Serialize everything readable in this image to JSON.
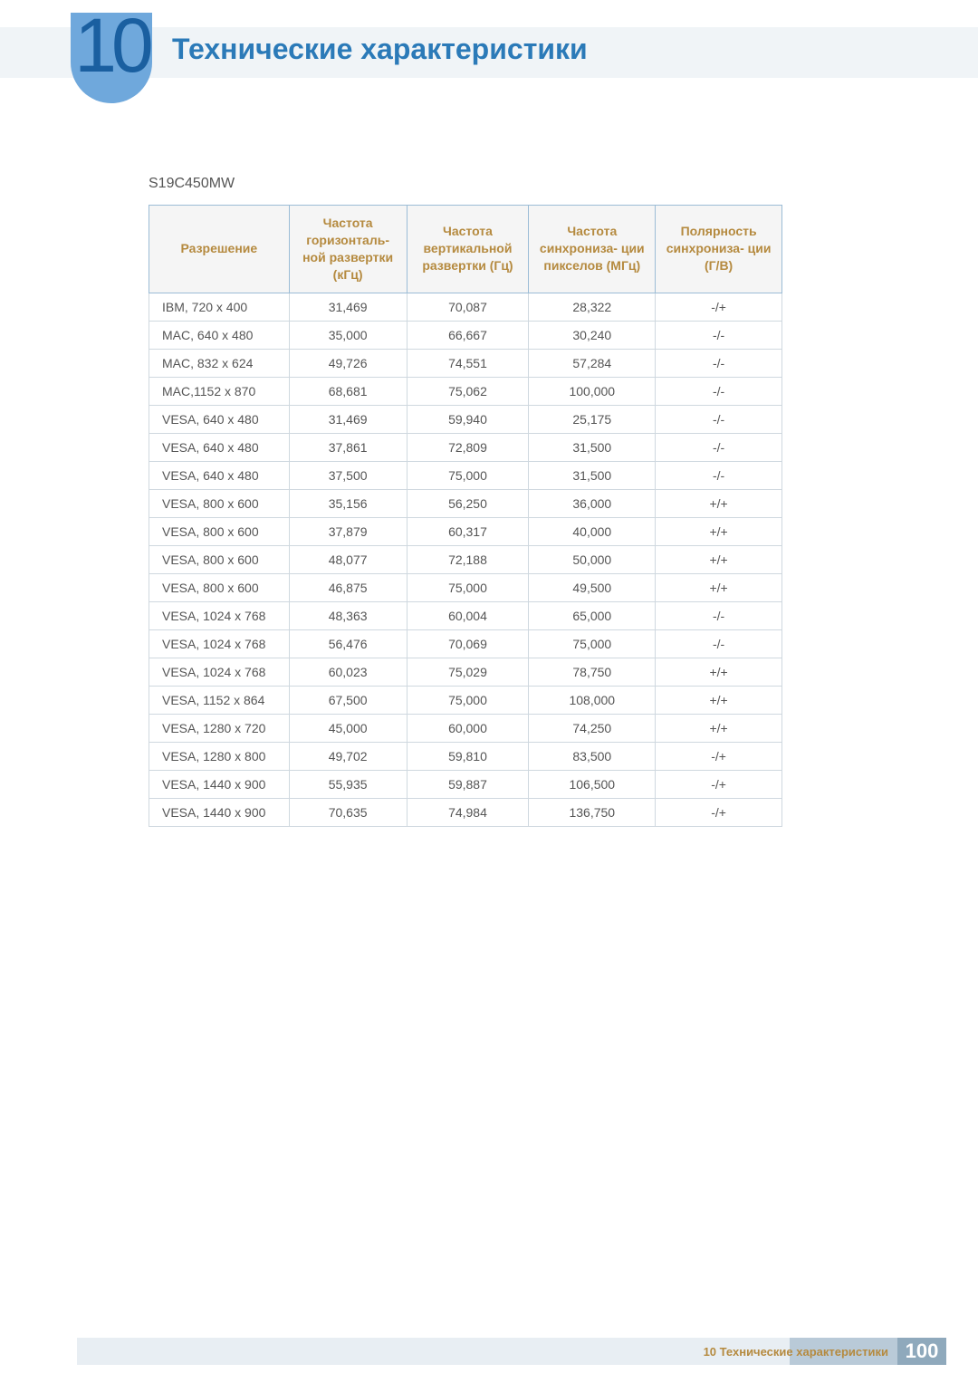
{
  "header": {
    "chapter_number": "10",
    "title": "Технические характеристики",
    "badge_color": "#6fa8dc",
    "number_color": "#1a5fa0",
    "title_color": "#2b7ab8",
    "bar_background": "#f0f4f7"
  },
  "model": "S19C450MW",
  "table": {
    "border_color": "#9bbcd6",
    "cell_border_color": "#cfd8df",
    "header_bg": "#f5f5f5",
    "header_text_color": "#b58a3f",
    "body_text_color": "#555555",
    "columns": [
      "Разрешение",
      "Частота горизонталь- ной развертки (кГц)",
      "Частота вертикальной развертки (Гц)",
      "Частота синхрониза- ции пикселов (МГц)",
      "Полярность синхрониза- ции (Г/В)"
    ],
    "rows": [
      [
        "IBM, 720 x 400",
        "31,469",
        "70,087",
        "28,322",
        "-/+"
      ],
      [
        "MAC, 640 x 480",
        "35,000",
        "66,667",
        "30,240",
        "-/-"
      ],
      [
        "MAC, 832 x 624",
        "49,726",
        "74,551",
        "57,284",
        "-/-"
      ],
      [
        "MAC,1152 x 870",
        "68,681",
        "75,062",
        "100,000",
        "-/-"
      ],
      [
        "VESA, 640 x 480",
        "31,469",
        "59,940",
        "25,175",
        "-/-"
      ],
      [
        "VESA, 640 x 480",
        "37,861",
        "72,809",
        "31,500",
        "-/-"
      ],
      [
        "VESA, 640 x 480",
        "37,500",
        "75,000",
        "31,500",
        "-/-"
      ],
      [
        "VESA, 800 x 600",
        "35,156",
        "56,250",
        "36,000",
        "+/+"
      ],
      [
        "VESA, 800 x 600",
        "37,879",
        "60,317",
        "40,000",
        "+/+"
      ],
      [
        "VESA, 800 x 600",
        "48,077",
        "72,188",
        "50,000",
        "+/+"
      ],
      [
        "VESA, 800 x 600",
        "46,875",
        "75,000",
        "49,500",
        "+/+"
      ],
      [
        "VESA, 1024 x 768",
        "48,363",
        "60,004",
        "65,000",
        "-/-"
      ],
      [
        "VESA, 1024 x 768",
        "56,476",
        "70,069",
        "75,000",
        "-/-"
      ],
      [
        "VESA, 1024 x 768",
        "60,023",
        "75,029",
        "78,750",
        "+/+"
      ],
      [
        "VESA, 1152 x 864",
        "67,500",
        "75,000",
        "108,000",
        "+/+"
      ],
      [
        "VESA, 1280 x 720",
        "45,000",
        "60,000",
        "74,250",
        "+/+"
      ],
      [
        "VESA, 1280 x 800",
        "49,702",
        "59,810",
        "83,500",
        "-/+"
      ],
      [
        "VESA, 1440 x 900",
        "55,935",
        "59,887",
        "106,500",
        "-/+"
      ],
      [
        "VESA, 1440 x 900",
        "70,635",
        "74,984",
        "136,750",
        "-/+"
      ]
    ]
  },
  "footer": {
    "text": "10 Технические характеристики",
    "page": "100",
    "text_color": "#b58a3f",
    "bar_gradient_light": "#e8eef3",
    "bar_gradient_dark": "#b9cad8",
    "page_box_bg": "#8fa9bc",
    "page_color": "#ffffff"
  }
}
